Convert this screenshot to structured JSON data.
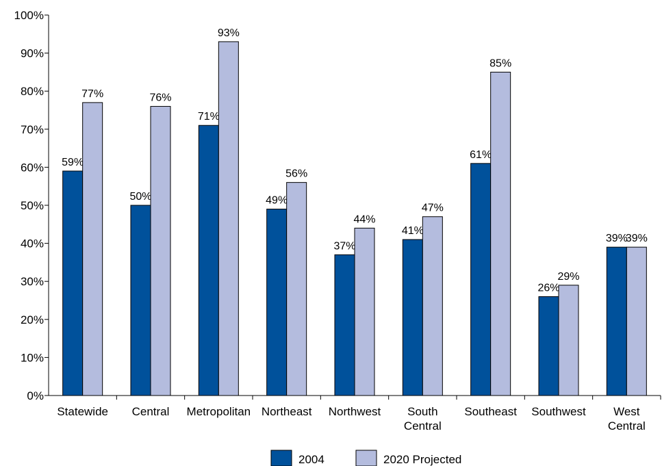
{
  "chart_data": {
    "type": "bar",
    "categories": [
      [
        "Statewide"
      ],
      [
        "Central"
      ],
      [
        "Metropolitan"
      ],
      [
        "Northeast"
      ],
      [
        "Northwest"
      ],
      [
        "South",
        "Central"
      ],
      [
        "Southeast"
      ],
      [
        "Southwest"
      ],
      [
        "West",
        "Central"
      ]
    ],
    "series": [
      {
        "name": "2004",
        "color": "#00519b",
        "values": [
          59,
          50,
          71,
          49,
          37,
          41,
          61,
          26,
          39
        ],
        "labels": [
          "59%",
          "50%",
          "71%",
          "49%",
          "37%",
          "41%",
          "61%",
          "26%",
          "39%"
        ]
      },
      {
        "name": "2020 Projected",
        "color": "#b4bcde",
        "values": [
          77,
          76,
          93,
          56,
          44,
          47,
          85,
          29,
          39
        ],
        "labels": [
          "77%",
          "76%",
          "93%",
          "56%",
          "44%",
          "47%",
          "85%",
          "29%",
          "39%"
        ]
      }
    ],
    "yticks": [
      "0%",
      "10%",
      "20%",
      "30%",
      "40%",
      "50%",
      "60%",
      "70%",
      "80%",
      "90%",
      "100%"
    ],
    "ylim": [
      0,
      100
    ],
    "grid": false,
    "legend": "bottom-center"
  }
}
